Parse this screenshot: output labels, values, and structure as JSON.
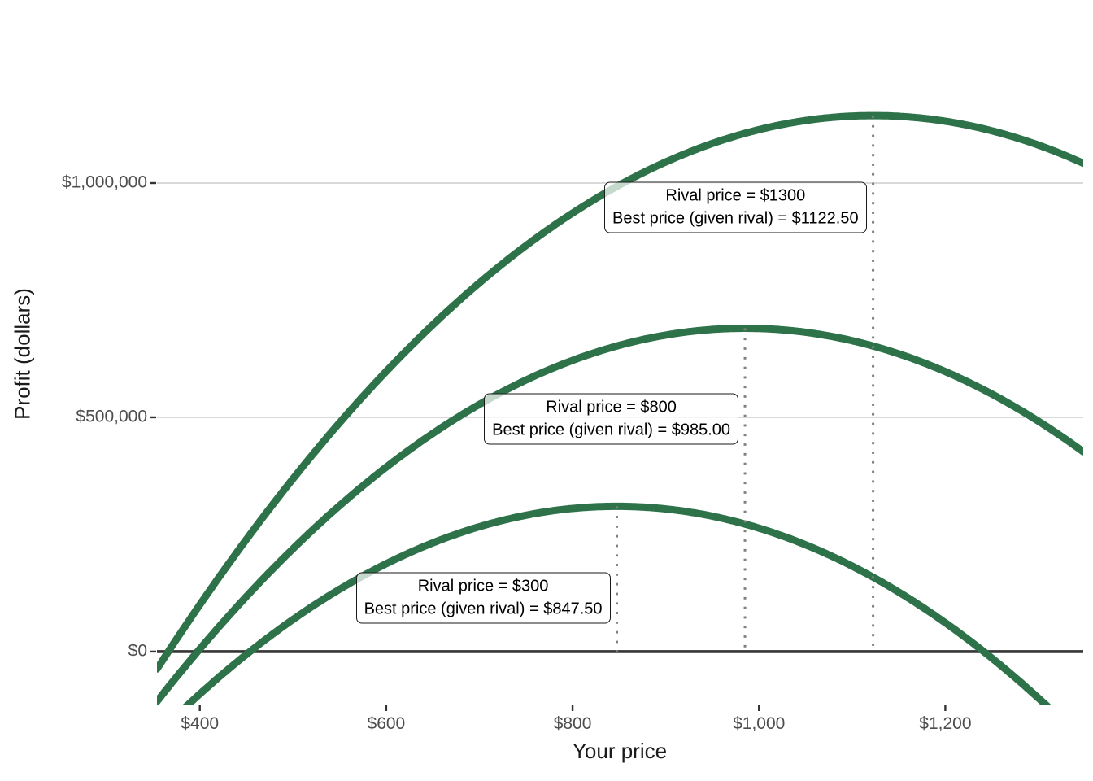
{
  "chart_data": {
    "type": "line",
    "title": "",
    "xlabel": "Your price",
    "ylabel": "Profit (dollars)",
    "x_domain": [
      354,
      1348
    ],
    "y_domain": [
      -113000,
      1382000
    ],
    "grid": "horizontal-only",
    "legend": "none",
    "x_ticks": [
      {
        "value": 400,
        "label": "$400"
      },
      {
        "value": 600,
        "label": "$600"
      },
      {
        "value": 800,
        "label": "$800"
      },
      {
        "value": 1000,
        "label": "$1,000"
      },
      {
        "value": 1200,
        "label": "$1,200"
      }
    ],
    "y_ticks": [
      {
        "value": 0,
        "label": "$0"
      },
      {
        "value": 500000,
        "label": "$500,000"
      },
      {
        "value": 1000000,
        "label": "$1,000,000"
      }
    ],
    "zero_line_value": 0,
    "curve_model": "profit(p) = peak_profit - quad_coef * (p - best_price)^2",
    "series": [
      {
        "name": "rival-300",
        "rival_price": 300,
        "best_price": 847.5,
        "peak_profit": 310000,
        "quad_coef": 2,
        "annotation": {
          "line1": "Rival price = $300",
          "line2": "Best price (given rival) = $847.50",
          "anchor_profit": 114000
        }
      },
      {
        "name": "rival-800",
        "rival_price": 800,
        "best_price": 985,
        "peak_profit": 690000,
        "quad_coef": 2,
        "annotation": {
          "line1": "Rival price = $800",
          "line2": "Best price (given rival) = $985.00",
          "anchor_profit": 496000
        }
      },
      {
        "name": "rival-1300",
        "rival_price": 1300,
        "best_price": 1122.5,
        "peak_profit": 1144000,
        "quad_coef": 2,
        "annotation": {
          "line1": "Rival price = $1300",
          "line2": "Best price (given rival) = $1122.50",
          "anchor_profit": 948000
        }
      }
    ],
    "colors": {
      "curve": "#2d7249",
      "gridline": "#d9d9d9",
      "zero_line": "#363636",
      "best_price_line": "#7f7f7f",
      "tick": "#333333",
      "tick_label": "#4d4d4d",
      "axis_title": "#1a1a1a",
      "annotation_border": "#1a1a1a",
      "annotation_text": "#000000",
      "annotation_fill": "rgba(255,255,255,0.72)"
    }
  }
}
